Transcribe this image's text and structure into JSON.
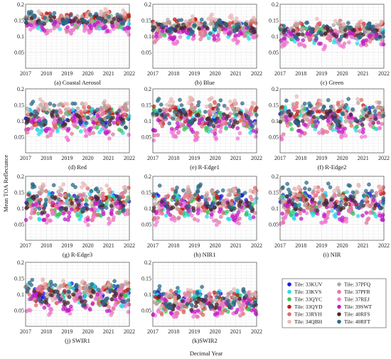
{
  "chart_data": {
    "type": "scatter",
    "xlabel": "Decimal Year",
    "ylabel": "Mean TOA Reflectance",
    "x_ticks": [
      "2017",
      "2018",
      "2019",
      "2020",
      "2021",
      "2022"
    ],
    "xlim": [
      2017,
      2022
    ],
    "grid": true,
    "legend_position": "bottom-right",
    "legend_prefix": "Tile: ",
    "tiles": [
      {
        "name": "33KUV",
        "color": "#1a1adb"
      },
      {
        "name": "33KVS",
        "color": "#2ad8e8"
      },
      {
        "name": "33QYC",
        "color": "#3fc25a"
      },
      {
        "name": "33QYD",
        "color": "#c21a1a"
      },
      {
        "name": "33RYH",
        "color": "#e06a6a"
      },
      {
        "name": "34QBH",
        "color": "#e8b7b7"
      },
      {
        "name": "37PFQ",
        "color": "#b2a7a0"
      },
      {
        "name": "37PFR",
        "color": "#e07aa0"
      },
      {
        "name": "37REJ",
        "color": "#f07ad6"
      },
      {
        "name": "39SWT",
        "color": "#c01ec8"
      },
      {
        "name": "40RFS",
        "color": "#4a2a34"
      },
      {
        "name": "40RFT",
        "color": "#2e6a86"
      }
    ],
    "panels": [
      {
        "caption": "(a) Coastal Aerosol",
        "ylim": [
          0,
          0.2
        ],
        "y_ticks": [
          "0.2",
          "0.15",
          "0.1",
          "0.05"
        ],
        "levels": [
          0.148,
          0.138,
          0.145,
          0.16,
          0.152,
          0.165,
          0.155,
          0.13,
          0.125,
          0.135,
          0.15,
          0.158
        ],
        "amplitude": 0.012
      },
      {
        "caption": "(b) Blue",
        "ylim": [
          0,
          0.2
        ],
        "y_ticks": [
          "0.2",
          "0.15",
          "0.1",
          "0.05"
        ],
        "levels": [
          0.13,
          0.118,
          0.122,
          0.135,
          0.128,
          0.145,
          0.132,
          0.105,
          0.1,
          0.11,
          0.125,
          0.13
        ],
        "amplitude": 0.015
      },
      {
        "caption": "(c) Green",
        "ylim": [
          0,
          0.2
        ],
        "y_ticks": [
          "0.2",
          "0.15",
          "0.1",
          "0.05"
        ],
        "levels": [
          0.115,
          0.105,
          0.11,
          0.12,
          0.118,
          0.13,
          0.12,
          0.098,
          0.085,
          0.095,
          0.11,
          0.115
        ],
        "amplitude": 0.018
      },
      {
        "caption": "(d) Red",
        "ylim": [
          0,
          0.2
        ],
        "y_ticks": [
          "0.2",
          "0.15",
          "0.1",
          "0.05"
        ],
        "levels": [
          0.11,
          0.1,
          0.105,
          0.115,
          0.12,
          0.135,
          0.125,
          0.095,
          0.08,
          0.09,
          0.105,
          0.12
        ],
        "amplitude": 0.03
      },
      {
        "caption": "(e) R-Edge1",
        "ylim": [
          0,
          0.2
        ],
        "y_ticks": [
          "0.2",
          "0.15",
          "0.1",
          "0.05"
        ],
        "levels": [
          0.11,
          0.1,
          0.105,
          0.118,
          0.12,
          0.135,
          0.125,
          0.095,
          0.08,
          0.09,
          0.108,
          0.125
        ],
        "amplitude": 0.03
      },
      {
        "caption": "(f) R-Edge2",
        "ylim": [
          0,
          0.2
        ],
        "y_ticks": [
          "0.2",
          "0.15",
          "0.1",
          "0.05"
        ],
        "levels": [
          0.115,
          0.105,
          0.108,
          0.12,
          0.122,
          0.138,
          0.128,
          0.098,
          0.082,
          0.092,
          0.11,
          0.128
        ],
        "amplitude": 0.03
      },
      {
        "caption": "(g) R-Edge3",
        "ylim": [
          0,
          0.2
        ],
        "y_ticks": [
          "0.2",
          "0.15",
          "0.1",
          "0.05"
        ],
        "levels": [
          0.12,
          0.108,
          0.11,
          0.122,
          0.125,
          0.14,
          0.13,
          0.1,
          0.085,
          0.095,
          0.112,
          0.135
        ],
        "amplitude": 0.032
      },
      {
        "caption": "(h) NIR1",
        "ylim": [
          0,
          0.2
        ],
        "y_ticks": [
          "0.2",
          "0.15",
          "0.1",
          "0.05"
        ],
        "levels": [
          0.12,
          0.108,
          0.11,
          0.12,
          0.122,
          0.135,
          0.128,
          0.1,
          0.085,
          0.095,
          0.11,
          0.135
        ],
        "amplitude": 0.03
      },
      {
        "caption": "(i) NIR",
        "ylim": [
          0,
          0.2
        ],
        "y_ticks": [
          "0.2",
          "0.15",
          "0.1",
          "0.05"
        ],
        "levels": [
          0.122,
          0.11,
          0.112,
          0.122,
          0.124,
          0.138,
          0.13,
          0.102,
          0.086,
          0.096,
          0.112,
          0.138
        ],
        "amplitude": 0.03
      },
      {
        "caption": "(j) SWIR1",
        "ylim": [
          0,
          0.2
        ],
        "y_ticks": [
          "0.2",
          "0.15",
          "0.1",
          "0.05"
        ],
        "levels": [
          0.11,
          0.1,
          0.1,
          0.105,
          0.1,
          0.112,
          0.108,
          0.085,
          0.07,
          0.075,
          0.09,
          0.105
        ],
        "amplitude": 0.028
      },
      {
        "caption": "(k)SWIR2",
        "ylim": [
          0,
          0.2
        ],
        "y_ticks": [
          "0.2",
          "0.15",
          "0.1",
          "0.05"
        ],
        "levels": [
          0.085,
          0.078,
          0.075,
          0.08,
          0.075,
          0.088,
          0.082,
          0.068,
          0.058,
          0.062,
          0.072,
          0.09
        ],
        "amplitude": 0.025
      }
    ]
  }
}
